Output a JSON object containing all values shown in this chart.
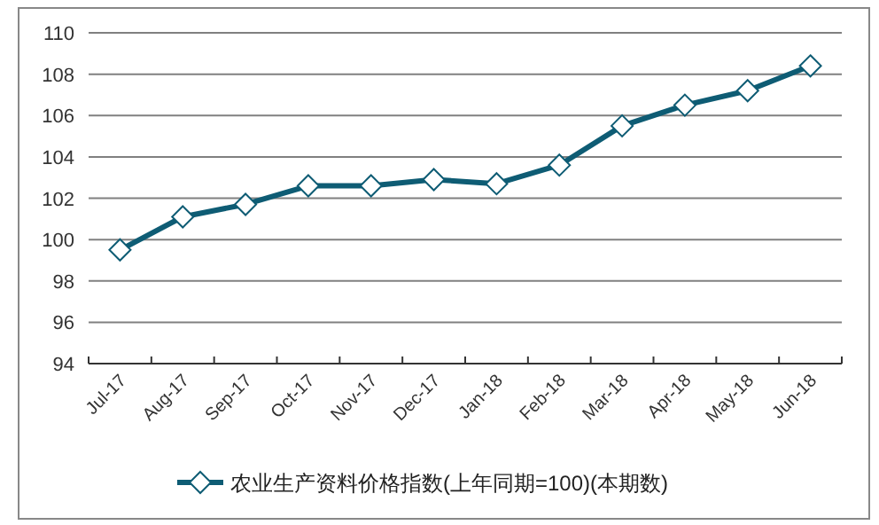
{
  "chart_data": {
    "type": "line",
    "categories": [
      "Jul-17",
      "Aug-17",
      "Sep-17",
      "Oct-17",
      "Nov-17",
      "Dec-17",
      "Jan-18",
      "Feb-18",
      "Mar-18",
      "Apr-18",
      "May-18",
      "Jun-18"
    ],
    "series": [
      {
        "name": "农业生产资料价格指数(上年同期=100)(本期数)",
        "color": "#0e5c74",
        "values": [
          99.5,
          101.1,
          101.7,
          102.6,
          102.6,
          102.9,
          102.7,
          103.6,
          105.5,
          106.5,
          107.2,
          108.4
        ]
      }
    ],
    "ylim": [
      94,
      110
    ],
    "yticks": [
      94,
      96,
      98,
      100,
      102,
      104,
      106,
      108,
      110
    ],
    "grid": "y",
    "legend": "bottom",
    "marker": "diamond",
    "line_style": "solid"
  }
}
